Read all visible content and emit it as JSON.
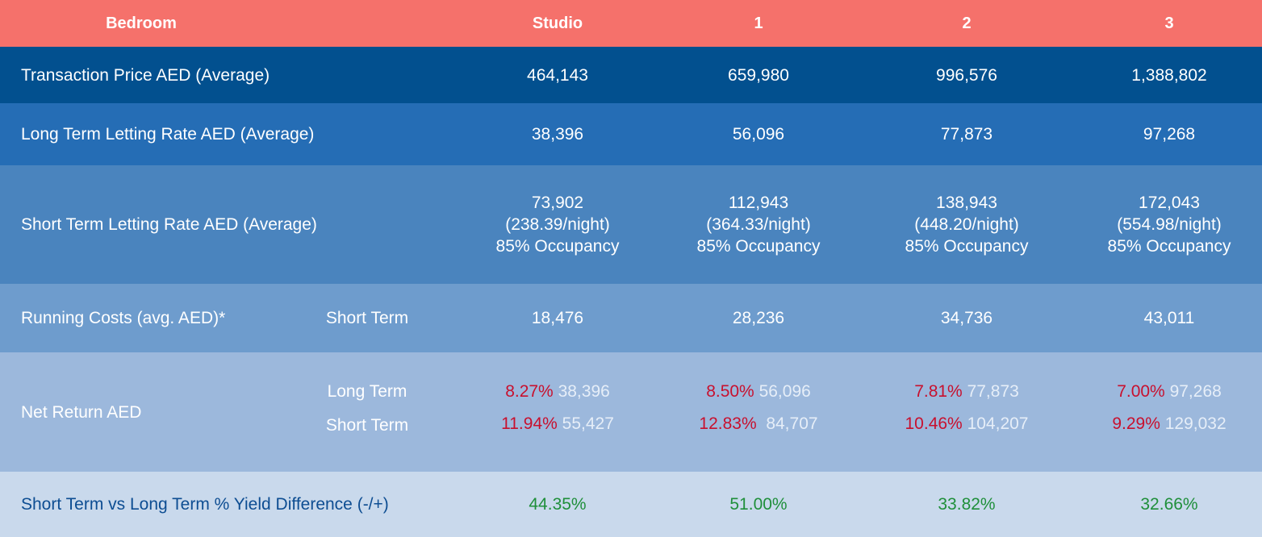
{
  "header": {
    "bedroom_label": "Bedroom",
    "columns": [
      "Studio",
      "1",
      "2",
      "3"
    ],
    "bg": "#f5716b"
  },
  "rows": {
    "transaction": {
      "label": "Transaction Price AED (Average)",
      "values": [
        "464,143",
        "659,980",
        "996,576",
        "1,388,802"
      ],
      "bg": "#02508f"
    },
    "long_term": {
      "label": "Long Term Letting Rate AED (Average)",
      "values": [
        "38,396",
        "56,096",
        "77,873",
        "97,268"
      ],
      "bg": "#256db5"
    },
    "short_term": {
      "label": "Short Term Letting Rate AED (Average)",
      "cells": [
        {
          "value": "73,902",
          "night": "(238.39/night)",
          "occupancy": "85% Occupancy"
        },
        {
          "value": "112,943",
          "night": "(364.33/night)",
          "occupancy": "85% Occupancy"
        },
        {
          "value": "138,943",
          "night": "(448.20/night)",
          "occupancy": "85% Occupancy"
        },
        {
          "value": "172,043",
          "night": "(554.98/night)",
          "occupancy": "85% Occupancy"
        }
      ],
      "bg": "#4a84be"
    },
    "running_costs": {
      "label": "Running Costs (avg. AED)*",
      "sublabel": "Short Term",
      "values": [
        "18,476",
        "28,236",
        "34,736",
        "43,011"
      ],
      "bg": "#6e9ccd"
    },
    "net_return": {
      "label": "Net Return AED",
      "sublabel_long": "Long Term",
      "sublabel_short": "Short Term",
      "long": [
        {
          "pct": "8.27%",
          "amount": "38,396"
        },
        {
          "pct": "8.50%",
          "amount": "56,096"
        },
        {
          "pct": "7.81%",
          "amount": "77,873"
        },
        {
          "pct": "7.00%",
          "amount": "97,268"
        }
      ],
      "short": [
        {
          "pct": "11.94%",
          "amount": "55,427"
        },
        {
          "pct": "12.83%",
          "amount": "84,707"
        },
        {
          "pct": "10.46%",
          "amount": "104,207"
        },
        {
          "pct": "9.29%",
          "amount": "129,032"
        }
      ],
      "bg": "#9cb8dc"
    },
    "yield_diff": {
      "label": "Short Term vs Long Term % Yield Difference (-/+)",
      "values": [
        "44.35%",
        "51.00%",
        "33.82%",
        "32.66%"
      ],
      "bg": "#c9d9ec"
    }
  },
  "colors": {
    "pct_red": "#c8102e",
    "pct_green": "#1f8f3a",
    "label_blue": "#0d4d92"
  }
}
